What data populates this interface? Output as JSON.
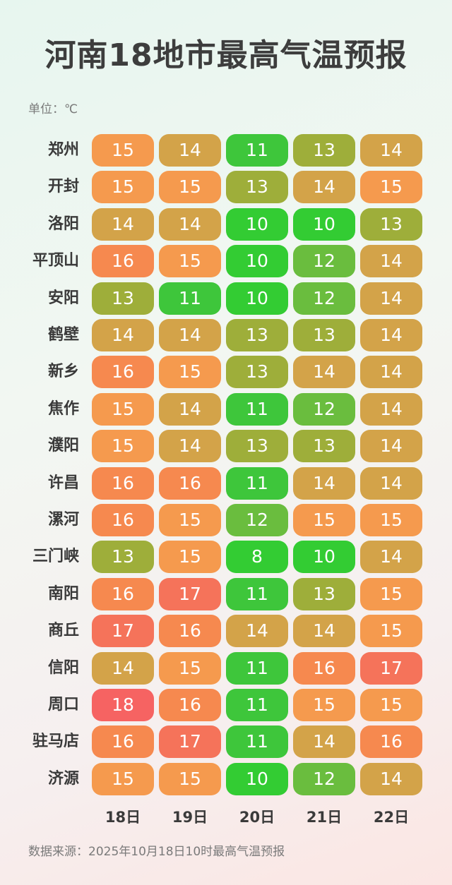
{
  "title": "河南18地市最高气温预报",
  "unit_label": "单位：℃",
  "source": "数据来源：2025年10月18日10时最高气温预报",
  "colors": {
    "8": "#33cc33",
    "10": "#33cc33",
    "11": "#3ec63b",
    "12": "#6abd3e",
    "13": "#9eae3a",
    "14": "#d3a349",
    "15": "#f59a4e",
    "16": "#f6894f",
    "17": "#f5735a",
    "18": "#f66362"
  },
  "chart_data": {
    "type": "table",
    "title": "河南18地市最高气温预报",
    "columns": [
      "18日",
      "19日",
      "20日",
      "21日",
      "22日"
    ],
    "rows": [
      {
        "city": "郑州",
        "values": [
          15,
          14,
          11,
          13,
          14
        ]
      },
      {
        "city": "开封",
        "values": [
          15,
          15,
          13,
          14,
          15
        ]
      },
      {
        "city": "洛阳",
        "values": [
          14,
          14,
          10,
          10,
          13
        ]
      },
      {
        "city": "平顶山",
        "values": [
          16,
          15,
          10,
          12,
          14
        ]
      },
      {
        "city": "安阳",
        "values": [
          13,
          11,
          10,
          12,
          14
        ]
      },
      {
        "city": "鹤壁",
        "values": [
          14,
          14,
          13,
          13,
          14
        ]
      },
      {
        "city": "新乡",
        "values": [
          16,
          15,
          13,
          14,
          14
        ]
      },
      {
        "city": "焦作",
        "values": [
          15,
          14,
          11,
          12,
          14
        ]
      },
      {
        "city": "濮阳",
        "values": [
          15,
          14,
          13,
          13,
          14
        ]
      },
      {
        "city": "许昌",
        "values": [
          16,
          16,
          11,
          14,
          14
        ]
      },
      {
        "city": "漯河",
        "values": [
          16,
          15,
          12,
          15,
          15
        ]
      },
      {
        "city": "三门峡",
        "values": [
          13,
          15,
          8,
          10,
          14
        ]
      },
      {
        "city": "南阳",
        "values": [
          16,
          17,
          11,
          13,
          15
        ]
      },
      {
        "city": "商丘",
        "values": [
          17,
          16,
          14,
          14,
          15
        ]
      },
      {
        "city": "信阳",
        "values": [
          14,
          15,
          11,
          16,
          17
        ]
      },
      {
        "city": "周口",
        "values": [
          18,
          16,
          11,
          15,
          15
        ]
      },
      {
        "city": "驻马店",
        "values": [
          16,
          17,
          11,
          14,
          16
        ]
      },
      {
        "city": "济源",
        "values": [
          15,
          15,
          10,
          12,
          14
        ]
      }
    ]
  }
}
